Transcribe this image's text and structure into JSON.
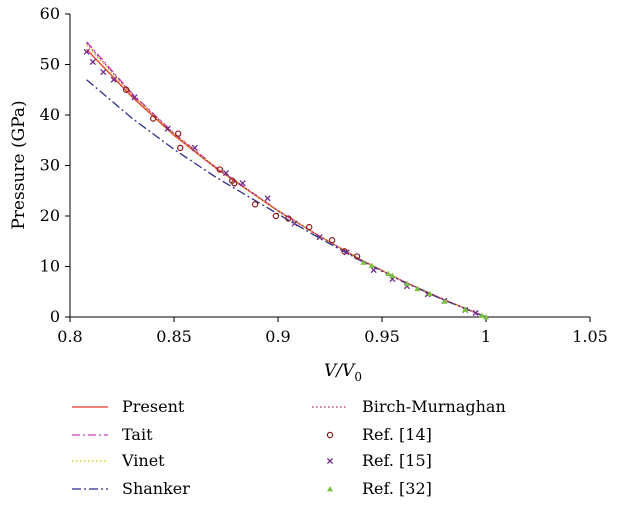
{
  "chart_data": {
    "type": "line",
    "xlabel": "V/V",
    "xlabel_sub": "0",
    "ylabel": "Pressure (GPa)",
    "xlim": [
      0.8,
      1.05
    ],
    "ylim": [
      0,
      60
    ],
    "xticks": [
      "0.8",
      "0.85",
      "0.9",
      "0.95",
      "1",
      "1.05"
    ],
    "yticks": [
      "0",
      "10",
      "20",
      "30",
      "40",
      "50",
      "60"
    ],
    "grid": false,
    "legend_position": "bottom",
    "legend": [
      "Present",
      "Tait",
      "Vinet",
      "Shanker",
      "Birch-Murnaghan",
      "Ref. [14]",
      "Ref. [15]",
      "Ref. [32]"
    ],
    "series": [
      {
        "name": "Present",
        "kind": "line",
        "color": "#e8372a",
        "dash": "",
        "x": [
          0.808,
          0.83,
          0.85,
          0.87,
          0.9,
          0.92,
          0.94,
          0.96,
          0.98,
          1.0
        ],
        "y": [
          53.0,
          43.5,
          36.0,
          29.5,
          21.0,
          16.0,
          11.3,
          7.1,
          3.4,
          0
        ]
      },
      {
        "name": "Tait",
        "kind": "line",
        "color": "#c040c0",
        "dash": "8 3 2 3",
        "x": [
          0.808,
          0.83,
          0.85,
          0.87,
          0.9,
          0.92,
          0.94,
          0.96,
          0.98,
          1.0
        ],
        "y": [
          54.5,
          44.2,
          36.4,
          29.7,
          21.1,
          16.0,
          11.3,
          7.1,
          3.4,
          0
        ]
      },
      {
        "name": "Vinet",
        "kind": "line",
        "color": "#d8c400",
        "dash": "1.5 2.5",
        "x": [
          0.808,
          0.83,
          0.85,
          0.87,
          0.9,
          0.92,
          0.94,
          0.96,
          0.98,
          1.0
        ],
        "y": [
          53.8,
          43.9,
          36.2,
          29.6,
          21.0,
          16.0,
          11.3,
          7.1,
          3.4,
          0
        ]
      },
      {
        "name": "Shanker",
        "kind": "line",
        "color": "#2a2f8c",
        "dash": "9 3 2 3",
        "x": [
          0.808,
          0.83,
          0.85,
          0.87,
          0.9,
          0.92,
          0.94,
          0.96,
          0.98,
          1.0
        ],
        "y": [
          47.0,
          39.3,
          33.2,
          27.7,
          20.4,
          15.6,
          11.1,
          7.0,
          3.3,
          0
        ]
      },
      {
        "name": "Birch-Murnaghan",
        "kind": "line",
        "color": "#b0306a",
        "dash": "1.5 2.5",
        "x": [
          0.808,
          0.83,
          0.85,
          0.87,
          0.9,
          0.92,
          0.94,
          0.96,
          0.98,
          1.0
        ],
        "y": [
          54.2,
          44.0,
          36.3,
          29.6,
          21.0,
          16.0,
          11.3,
          7.1,
          3.4,
          0
        ]
      },
      {
        "name": "Ref. [14]",
        "kind": "scatter",
        "marker": "circle",
        "color": "#8b1a1a",
        "x": [
          0.827,
          0.84,
          0.852,
          0.853,
          0.872,
          0.878,
          0.879,
          0.889,
          0.899,
          0.905,
          0.915,
          0.926,
          0.932,
          0.938
        ],
        "y": [
          45.0,
          39.3,
          36.3,
          33.5,
          29.2,
          27.0,
          26.5,
          22.3,
          20.0,
          19.5,
          17.8,
          15.2,
          13.0,
          12.0
        ]
      },
      {
        "name": "Ref. [15]",
        "kind": "scatter",
        "marker": "x",
        "color": "#6a2a8a",
        "x": [
          0.808,
          0.811,
          0.816,
          0.821,
          0.831,
          0.847,
          0.86,
          0.875,
          0.883,
          0.895,
          0.908,
          0.92,
          0.933,
          0.946,
          0.955,
          0.962,
          0.972,
          0.98,
          0.99,
          0.995
        ],
        "y": [
          52.5,
          50.5,
          48.5,
          47.0,
          43.5,
          37.3,
          33.5,
          28.5,
          26.5,
          23.5,
          18.5,
          15.8,
          12.8,
          9.3,
          7.5,
          6.1,
          4.5,
          3.2,
          1.4,
          0.8
        ]
      },
      {
        "name": "Ref. [32]",
        "kind": "scatter",
        "marker": "triangle",
        "color": "#7ac142",
        "x": [
          0.941,
          0.945,
          0.953,
          0.955,
          0.962,
          0.967,
          0.973,
          0.98,
          0.99,
          0.998,
          1.0
        ],
        "y": [
          10.8,
          10.2,
          8.6,
          8.2,
          6.6,
          5.6,
          4.6,
          3.1,
          1.5,
          0.3,
          0.0
        ]
      }
    ]
  }
}
